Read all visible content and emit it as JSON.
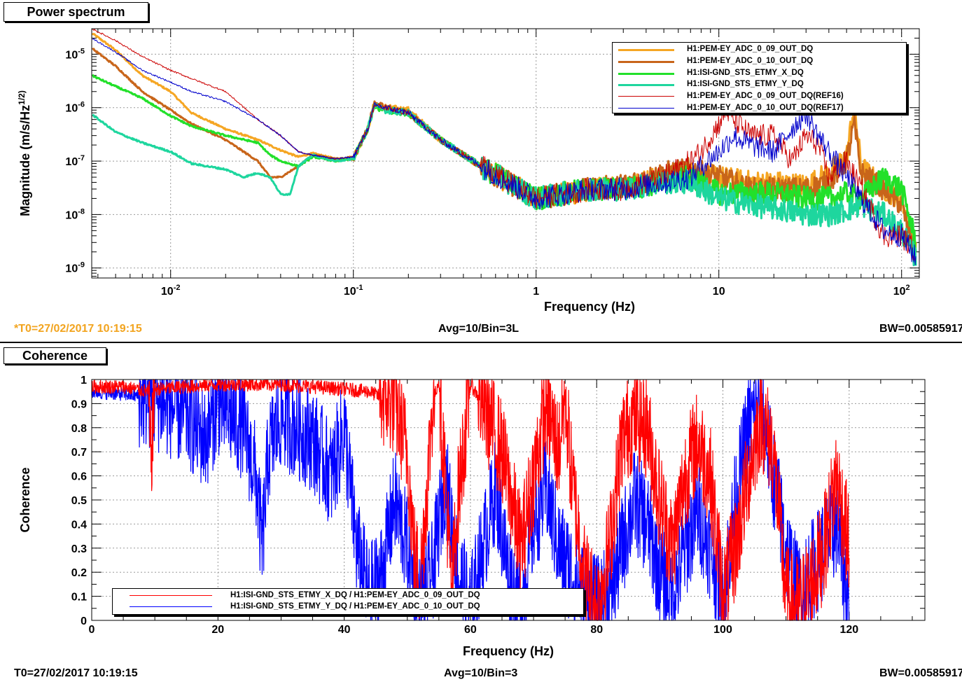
{
  "top": {
    "title": "Power spectrum",
    "footer_left": "*T0=27/02/2017 10:19:15",
    "footer_center": "Avg=10/Bin=3L",
    "footer_right": "BW=0.00585917"
  },
  "bottom": {
    "title": "Coherence",
    "footer_left": "T0=27/02/2017 10:19:15",
    "footer_center": "Avg=10/Bin=3",
    "footer_right": "BW=0.00585917"
  },
  "colors": {
    "footer_left_top": "#f2a41f",
    "orange": "#f5a623",
    "brown": "#c8651a",
    "green": "#22e02a",
    "teal": "#1ed69e",
    "red": "#cc0000",
    "blue": "#0000cc",
    "coh_red": "#ff0000",
    "coh_blue": "#0000ff"
  },
  "chart_data": [
    {
      "type": "line",
      "title": "Power spectrum",
      "xlabel": "Frequency (Hz)",
      "ylabel": "Magnitude (m/s/Hz^(1/2))",
      "xscale": "log",
      "yscale": "log",
      "xlim": [
        0.0037,
        125
      ],
      "ylim": [
        6.5e-10,
        3e-05
      ],
      "grid": true,
      "legend_position": "top-right",
      "x_ticks": [
        "10^-2",
        "10^-1",
        "1",
        "10",
        "10^2"
      ],
      "y_ticks": [
        "10^-9",
        "10^-8",
        "10^-7",
        "10^-6",
        "10^-5"
      ],
      "series": [
        {
          "name": "H1:PEM-EY_ADC_0_09_OUT_DQ",
          "color": "#f5a623",
          "x": [
            0.0037,
            0.005,
            0.007,
            0.01,
            0.013,
            0.02,
            0.03,
            0.04,
            0.05,
            0.06,
            0.08,
            0.1,
            0.12,
            0.13,
            0.15,
            0.2,
            0.3,
            0.5,
            1,
            2,
            3,
            5,
            7,
            10,
            15,
            20,
            30,
            40,
            50,
            55,
            60,
            80,
            100,
            120
          ],
          "y": [
            2.5e-05,
            1.2e-05,
            4e-06,
            2e-06,
            8e-07,
            4e-07,
            2.5e-07,
            1.6e-07,
            1.2e-07,
            1.4e-07,
            1.1e-07,
            1.2e-07,
            4e-07,
            1.2e-06,
            1e-06,
            9e-07,
            2.5e-07,
            8e-08,
            2e-08,
            3e-08,
            3.5e-08,
            5e-08,
            6e-08,
            5e-08,
            4e-08,
            4e-08,
            3.5e-08,
            6e-08,
            1.2e-07,
            1.2e-06,
            8e-08,
            3e-08,
            2e-08,
            2e-09
          ]
        },
        {
          "name": "H1:PEM-EY_ADC_0_10_OUT_DQ",
          "color": "#c8651a",
          "x": [
            0.0037,
            0.005,
            0.007,
            0.01,
            0.013,
            0.02,
            0.03,
            0.035,
            0.04,
            0.05,
            0.06,
            0.08,
            0.1,
            0.12,
            0.13,
            0.15,
            0.2,
            0.3,
            0.5,
            1,
            2,
            3,
            5,
            7,
            10,
            15,
            20,
            30,
            40,
            50,
            55,
            60,
            80,
            100,
            120
          ],
          "y": [
            1.3e-05,
            6e-06,
            2e-06,
            9e-07,
            5e-07,
            2.5e-07,
            1e-07,
            5e-08,
            5e-08,
            8e-08,
            1.3e-07,
            1.1e-07,
            1.1e-07,
            4e-07,
            1.2e-06,
            1e-06,
            8e-07,
            2.5e-07,
            8e-08,
            2e-08,
            3e-08,
            3.5e-08,
            6e-08,
            7e-08,
            5e-08,
            3e-08,
            3e-08,
            3e-08,
            4e-08,
            1e-07,
            5e-07,
            6e-08,
            3e-08,
            1.5e-08,
            1.5e-09
          ]
        },
        {
          "name": "H1:ISI-GND_STS_ETMY_X_DQ",
          "color": "#22e02a",
          "x": [
            0.0037,
            0.005,
            0.007,
            0.01,
            0.013,
            0.02,
            0.03,
            0.035,
            0.04,
            0.05,
            0.06,
            0.08,
            0.1,
            0.12,
            0.13,
            0.15,
            0.2,
            0.3,
            0.5,
            1,
            2,
            3,
            5,
            7,
            10,
            15,
            20,
            30,
            40,
            50,
            60,
            80,
            100,
            120
          ],
          "y": [
            4e-06,
            2.5e-06,
            1.5e-06,
            7e-07,
            4.5e-07,
            3e-07,
            2.2e-07,
            1.3e-07,
            1e-07,
            8e-08,
            1.2e-07,
            1e-07,
            1.1e-07,
            4e-07,
            1e-06,
            9e-07,
            8e-07,
            2.5e-07,
            8e-08,
            2e-08,
            3e-08,
            3e-08,
            4e-08,
            5e-08,
            2.5e-08,
            2.5e-08,
            2.5e-08,
            2e-08,
            2e-08,
            2.5e-08,
            2e-08,
            5e-08,
            3e-08,
            3e-09
          ]
        },
        {
          "name": "H1:ISI-GND_STS_ETMY_Y_DQ",
          "color": "#1ed69e",
          "x": [
            0.0037,
            0.005,
            0.007,
            0.01,
            0.013,
            0.02,
            0.025,
            0.03,
            0.035,
            0.04,
            0.045,
            0.05,
            0.06,
            0.08,
            0.1,
            0.12,
            0.13,
            0.15,
            0.2,
            0.3,
            0.5,
            1,
            2,
            3,
            5,
            7,
            10,
            15,
            20,
            30,
            40,
            50,
            60,
            80,
            100,
            120
          ],
          "y": [
            7.5e-07,
            3.5e-07,
            2.2e-07,
            1.5e-07,
            9e-08,
            7e-08,
            5e-08,
            6e-08,
            5e-08,
            2.4e-08,
            2.4e-08,
            8e-08,
            1.3e-07,
            1e-07,
            1.1e-07,
            4e-07,
            1.1e-06,
            9e-07,
            8e-07,
            2.5e-07,
            8e-08,
            2e-08,
            3e-08,
            3e-08,
            4e-08,
            4e-08,
            2e-08,
            1.5e-08,
            1.3e-08,
            1e-08,
            1e-08,
            1.2e-08,
            1.5e-08,
            1e-08,
            5e-09,
            1.5e-09
          ]
        },
        {
          "name": "H1:PEM-EY_ADC_0_09_OUT_DQ(REF16)",
          "color": "#cc0000",
          "x": [
            0.0037,
            0.005,
            0.007,
            0.01,
            0.013,
            0.02,
            0.03,
            0.04,
            0.05,
            0.06,
            0.08,
            0.1,
            0.12,
            0.13,
            0.15,
            0.2,
            0.3,
            0.5,
            1,
            2,
            3,
            5,
            7,
            8,
            10,
            11,
            12,
            15,
            20,
            25,
            30,
            35,
            40,
            50,
            60,
            80,
            100,
            120
          ],
          "y": [
            3e-05,
            1.8e-05,
            9e-06,
            5e-06,
            3.5e-06,
            2e-06,
            6e-07,
            3e-07,
            1.5e-07,
            1.3e-07,
            1.1e-07,
            1.2e-07,
            4e-07,
            1.1e-06,
            1e-06,
            8e-07,
            2.5e-07,
            8e-08,
            2e-08,
            3e-08,
            3e-08,
            5e-08,
            1e-07,
            1.5e-07,
            5e-07,
            9e-07,
            6e-07,
            3e-07,
            3e-07,
            1e-07,
            3e-07,
            2e-07,
            5e-08,
            1e-07,
            3e-08,
            4e-09,
            4e-09,
            2e-09
          ]
        },
        {
          "name": "H1:PEM-EY_ADC_0_10_OUT_DQ(REF17)",
          "color": "#0000cc",
          "x": [
            0.0037,
            0.005,
            0.007,
            0.01,
            0.013,
            0.02,
            0.03,
            0.04,
            0.05,
            0.06,
            0.08,
            0.1,
            0.12,
            0.13,
            0.15,
            0.2,
            0.3,
            0.5,
            1,
            2,
            3,
            5,
            7,
            8,
            10,
            12,
            15,
            20,
            25,
            30,
            35,
            40,
            50,
            60,
            80,
            100,
            120
          ],
          "y": [
            2e-05,
            1.1e-05,
            5e-06,
            3e-06,
            2e-06,
            1.3e-06,
            6e-07,
            3e-07,
            1.5e-07,
            1.3e-07,
            1.1e-07,
            1.2e-07,
            4e-07,
            1.1e-06,
            1e-06,
            8e-07,
            2.5e-07,
            8e-08,
            2e-08,
            3e-08,
            3e-08,
            4e-08,
            5e-08,
            8e-08,
            1.5e-07,
            3e-07,
            2e-07,
            1.5e-07,
            4e-07,
            8e-07,
            3e-07,
            1.5e-07,
            5e-08,
            2e-08,
            5e-09,
            4e-09,
            1.5e-09
          ]
        }
      ]
    },
    {
      "type": "line",
      "title": "Coherence",
      "xlabel": "Frequency (Hz)",
      "ylabel": "Coherence",
      "xlim": [
        0,
        132
      ],
      "ylim": [
        0,
        1
      ],
      "grid": true,
      "legend_position": "bottom-left",
      "x_ticks": [
        "0",
        "20",
        "40",
        "60",
        "80",
        "100",
        "120"
      ],
      "y_ticks": [
        "0",
        "0.1",
        "0.2",
        "0.3",
        "0.4",
        "0.5",
        "0.6",
        "0.7",
        "0.8",
        "0.9",
        "1"
      ],
      "series": [
        {
          "name": "H1:ISI-GND_STS_ETMY_X_DQ / H1:PEM-EY_ADC_0_09_OUT_DQ",
          "color": "#ff0000",
          "x": [
            0,
            5,
            9,
            9.3,
            10,
            20,
            30,
            40,
            44,
            48,
            50,
            51,
            52,
            53,
            54,
            55,
            56,
            57,
            58,
            60,
            62,
            65,
            68,
            70,
            72,
            74,
            75,
            76,
            78,
            80,
            82,
            84,
            86,
            88,
            90,
            92,
            94,
            96,
            98,
            100,
            102,
            104,
            106,
            108,
            110,
            112,
            114,
            116,
            118,
            120
          ],
          "y": [
            0.97,
            0.97,
            0.95,
            0.65,
            0.96,
            0.98,
            0.98,
            0.96,
            0.95,
            0.9,
            0.7,
            0.3,
            0.15,
            0.5,
            0.9,
            1.0,
            0.6,
            0.1,
            0.5,
            0.98,
            0.9,
            0.7,
            0.3,
            0.6,
            0.9,
            0.7,
            0.95,
            0.6,
            0.2,
            0.05,
            0.3,
            0.75,
            0.85,
            0.8,
            0.5,
            0.3,
            0.6,
            0.75,
            0.6,
            0.1,
            0.3,
            0.6,
            0.85,
            0.7,
            0.1,
            0.05,
            0.15,
            0.3,
            0.6,
            0.3
          ]
        },
        {
          "name": "H1:ISI-GND_STS_ETMY_Y_DQ / H1:PEM-EY_ADC_0_10_OUT_DQ",
          "color": "#0000ff",
          "x": [
            0,
            5,
            10,
            15,
            18,
            20,
            24,
            26,
            27,
            28,
            30,
            35,
            38,
            40,
            42,
            44,
            46,
            48,
            50,
            52,
            54,
            56,
            58,
            60,
            62,
            64,
            66,
            68,
            70,
            72,
            74,
            76,
            78,
            80,
            82,
            84,
            86,
            88,
            90,
            92,
            94,
            96,
            98,
            100,
            102,
            104,
            106,
            108,
            110,
            112,
            114,
            116,
            118,
            120
          ],
          "y": [
            0.95,
            0.94,
            0.92,
            0.85,
            0.75,
            0.9,
            0.8,
            0.6,
            0.3,
            0.7,
            0.85,
            0.75,
            0.6,
            0.8,
            0.3,
            0.1,
            0.2,
            0.5,
            0.3,
            0.05,
            0.2,
            0.6,
            0.2,
            0.05,
            0.3,
            0.55,
            0.2,
            0.05,
            0.4,
            0.55,
            0.3,
            0.2,
            0.1,
            0.05,
            0.1,
            0.3,
            0.5,
            0.4,
            0.2,
            0.1,
            0.3,
            0.45,
            0.3,
            0.1,
            0.5,
            0.8,
            0.9,
            0.6,
            0.3,
            0.1,
            0.2,
            0.3,
            0.4,
            0.05
          ]
        }
      ]
    }
  ]
}
